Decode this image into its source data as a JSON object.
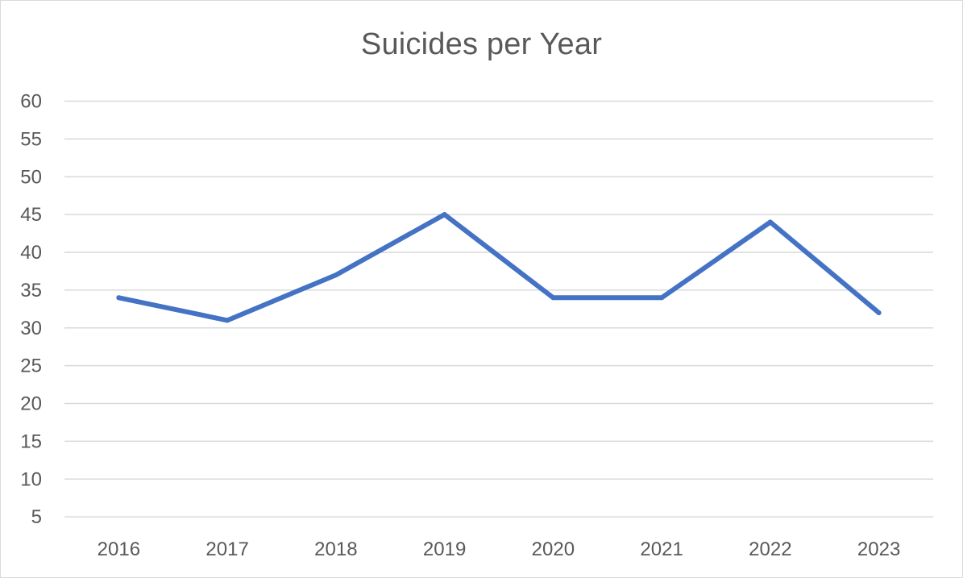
{
  "chart_data": {
    "type": "line",
    "title": "Suicides per Year",
    "xlabel": "",
    "ylabel": "",
    "categories": [
      "2016",
      "2017",
      "2018",
      "2019",
      "2020",
      "2021",
      "2022",
      "2023"
    ],
    "series": [
      {
        "values": [
          34,
          31,
          37,
          45,
          34,
          34,
          44,
          32
        ],
        "color": "#4472c4"
      }
    ],
    "ylim": [
      0,
      60
    ],
    "yticks": [
      5,
      10,
      15,
      20,
      25,
      30,
      35,
      40,
      45,
      50,
      55,
      60
    ],
    "grid": true,
    "legend": "none"
  }
}
